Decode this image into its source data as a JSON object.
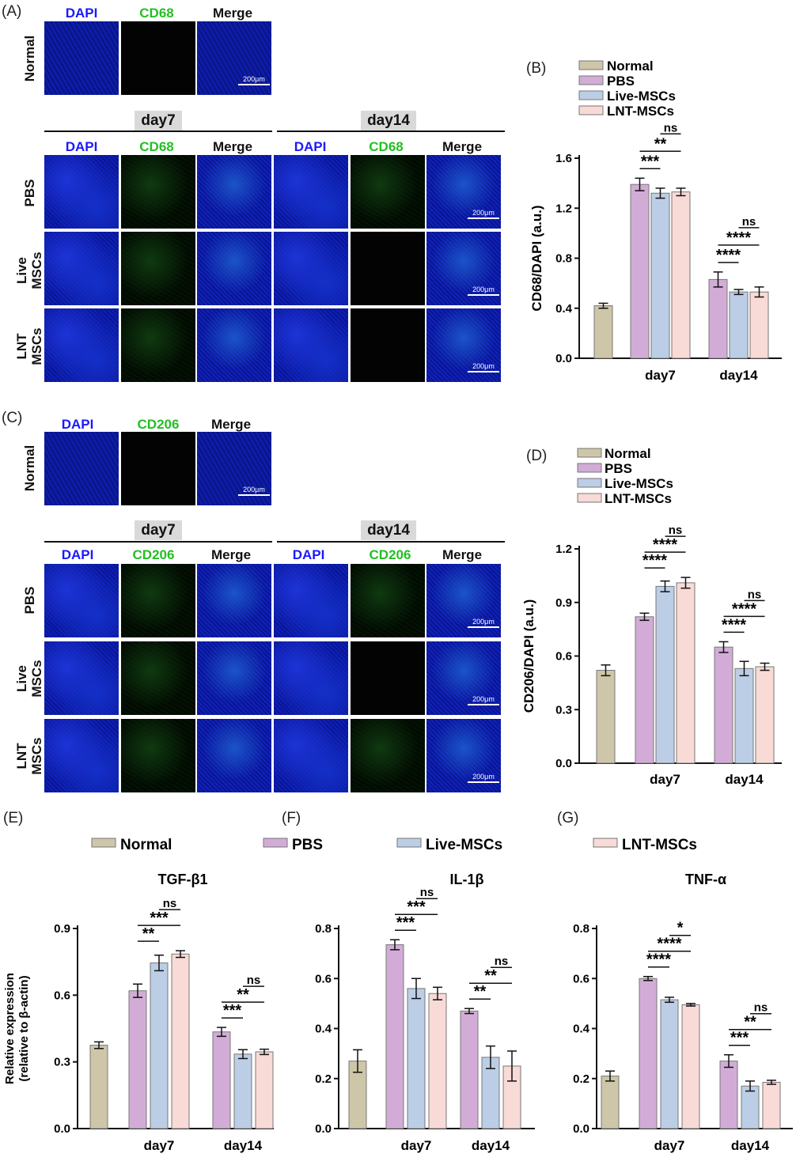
{
  "panel_labels": {
    "A": "(A)",
    "B": "(B)",
    "C": "(C)",
    "D": "(D)",
    "E": "(E)",
    "F": "(F)",
    "G": "(G)"
  },
  "stain_headers": {
    "dapi": "DAPI",
    "cd68": "CD68",
    "cd206": "CD206",
    "merge": "Merge"
  },
  "row_labels": {
    "normal": "Normal",
    "pbs": "PBS",
    "live": "Live\nMSCs",
    "lnt": "LNT\nMSCs"
  },
  "day_headers": {
    "day7": "day7",
    "day14": "day14"
  },
  "scale_bar": "200μm",
  "legend_groups": [
    "Normal",
    "PBS",
    "Live-MSCs",
    "LNT-MSCs"
  ],
  "colors": {
    "Normal": "#cdc6a8",
    "PBS": "#d2acd6",
    "Live-MSCs": "#bccee6",
    "LNT-MSCs": "#f8dad6"
  },
  "chart_data": [
    {
      "id": "B",
      "type": "bar",
      "ylabel": "CD68/DAPI (a.u.)",
      "yticks": [
        "0.0",
        "0.4",
        "0.8",
        "1.2",
        "1.6"
      ],
      "ylim": [
        0,
        1.6
      ],
      "categories": [
        "day7",
        "day14"
      ],
      "normal": {
        "value": 0.42,
        "err": 0.02
      },
      "series": [
        {
          "name": "PBS",
          "values": [
            1.39,
            0.63
          ],
          "errors": [
            0.05,
            0.06
          ]
        },
        {
          "name": "Live-MSCs",
          "values": [
            1.32,
            0.53
          ],
          "errors": [
            0.04,
            0.02
          ]
        },
        {
          "name": "LNT-MSCs",
          "values": [
            1.33,
            0.53
          ],
          "errors": [
            0.03,
            0.04
          ]
        }
      ],
      "significance": [
        {
          "group": 0,
          "from": 0,
          "to": 1,
          "label": "***"
        },
        {
          "group": 0,
          "from": 0,
          "to": 2,
          "label": "**"
        },
        {
          "group": 0,
          "from": 1,
          "to": 2,
          "label": "ns"
        },
        {
          "group": 1,
          "from": 0,
          "to": 1,
          "label": "****"
        },
        {
          "group": 1,
          "from": 0,
          "to": 2,
          "label": "****"
        },
        {
          "group": 1,
          "from": 1,
          "to": 2,
          "label": "ns"
        }
      ]
    },
    {
      "id": "D",
      "type": "bar",
      "ylabel": "CD206/DAPI (a.u.)",
      "yticks": [
        "0.0",
        "0.3",
        "0.6",
        "0.9",
        "1.2"
      ],
      "ylim": [
        0,
        1.2
      ],
      "categories": [
        "day7",
        "day14"
      ],
      "normal": {
        "value": 0.52,
        "err": 0.03
      },
      "series": [
        {
          "name": "PBS",
          "values": [
            0.82,
            0.65
          ],
          "errors": [
            0.02,
            0.03
          ]
        },
        {
          "name": "Live-MSCs",
          "values": [
            0.99,
            0.53
          ],
          "errors": [
            0.03,
            0.04
          ]
        },
        {
          "name": "LNT-MSCs",
          "values": [
            1.01,
            0.54
          ],
          "errors": [
            0.03,
            0.02
          ]
        }
      ],
      "significance": [
        {
          "group": 0,
          "from": 0,
          "to": 1,
          "label": "****"
        },
        {
          "group": 0,
          "from": 0,
          "to": 2,
          "label": "****"
        },
        {
          "group": 0,
          "from": 1,
          "to": 2,
          "label": "ns"
        },
        {
          "group": 1,
          "from": 0,
          "to": 1,
          "label": "****"
        },
        {
          "group": 1,
          "from": 0,
          "to": 2,
          "label": "****"
        },
        {
          "group": 1,
          "from": 1,
          "to": 2,
          "label": "ns"
        }
      ]
    },
    {
      "id": "E",
      "type": "bar",
      "title": "TGF-β1",
      "ylabel": "Relative expression\n(relative to β-actin)",
      "yticks": [
        "0.0",
        "0.3",
        "0.6",
        "0.9"
      ],
      "ylim": [
        0,
        0.9
      ],
      "categories": [
        "day7",
        "day14"
      ],
      "normal": {
        "value": 0.375,
        "err": 0.015
      },
      "series": [
        {
          "name": "PBS",
          "values": [
            0.62,
            0.435
          ],
          "errors": [
            0.03,
            0.02
          ]
        },
        {
          "name": "Live-MSCs",
          "values": [
            0.745,
            0.335
          ],
          "errors": [
            0.035,
            0.02
          ]
        },
        {
          "name": "LNT-MSCs",
          "values": [
            0.785,
            0.345
          ],
          "errors": [
            0.015,
            0.012
          ]
        }
      ],
      "significance": [
        {
          "group": 0,
          "from": 0,
          "to": 1,
          "label": "**"
        },
        {
          "group": 0,
          "from": 0,
          "to": 2,
          "label": "***"
        },
        {
          "group": 0,
          "from": 1,
          "to": 2,
          "label": "ns"
        },
        {
          "group": 1,
          "from": 0,
          "to": 1,
          "label": "***"
        },
        {
          "group": 1,
          "from": 0,
          "to": 2,
          "label": "**"
        },
        {
          "group": 1,
          "from": 1,
          "to": 2,
          "label": "ns"
        }
      ]
    },
    {
      "id": "F",
      "type": "bar",
      "title": "IL-1β",
      "ylabel": "",
      "yticks": [
        "0.0",
        "0.2",
        "0.4",
        "0.6",
        "0.8"
      ],
      "ylim": [
        0,
        0.8
      ],
      "categories": [
        "day7",
        "day14"
      ],
      "normal": {
        "value": 0.27,
        "err": 0.045
      },
      "series": [
        {
          "name": "PBS",
          "values": [
            0.735,
            0.47
          ],
          "errors": [
            0.02,
            0.01
          ]
        },
        {
          "name": "Live-MSCs",
          "values": [
            0.56,
            0.285
          ],
          "errors": [
            0.04,
            0.045
          ]
        },
        {
          "name": "LNT-MSCs",
          "values": [
            0.54,
            0.25
          ],
          "errors": [
            0.025,
            0.06
          ]
        }
      ],
      "significance": [
        {
          "group": 0,
          "from": 0,
          "to": 1,
          "label": "***"
        },
        {
          "group": 0,
          "from": 0,
          "to": 2,
          "label": "***"
        },
        {
          "group": 0,
          "from": 1,
          "to": 2,
          "label": "ns"
        },
        {
          "group": 1,
          "from": 0,
          "to": 1,
          "label": "**"
        },
        {
          "group": 1,
          "from": 0,
          "to": 2,
          "label": "**"
        },
        {
          "group": 1,
          "from": 1,
          "to": 2,
          "label": "ns"
        }
      ]
    },
    {
      "id": "G",
      "type": "bar",
      "title": "TNF-α",
      "ylabel": "",
      "yticks": [
        "0.0",
        "0.2",
        "0.4",
        "0.6",
        "0.8"
      ],
      "ylim": [
        0,
        0.8
      ],
      "categories": [
        "day7",
        "day14"
      ],
      "normal": {
        "value": 0.21,
        "err": 0.02
      },
      "series": [
        {
          "name": "PBS",
          "values": [
            0.6,
            0.27
          ],
          "errors": [
            0.008,
            0.025
          ]
        },
        {
          "name": "Live-MSCs",
          "values": [
            0.515,
            0.17
          ],
          "errors": [
            0.01,
            0.02
          ]
        },
        {
          "name": "LNT-MSCs",
          "values": [
            0.495,
            0.185
          ],
          "errors": [
            0.005,
            0.008
          ]
        }
      ],
      "significance": [
        {
          "group": 0,
          "from": 0,
          "to": 1,
          "label": "****"
        },
        {
          "group": 0,
          "from": 0,
          "to": 2,
          "label": "****"
        },
        {
          "group": 0,
          "from": 1,
          "to": 2,
          "label": "*"
        },
        {
          "group": 1,
          "from": 0,
          "to": 1,
          "label": "***"
        },
        {
          "group": 1,
          "from": 0,
          "to": 2,
          "label": "**"
        },
        {
          "group": 1,
          "from": 1,
          "to": 2,
          "label": "ns"
        }
      ]
    }
  ]
}
